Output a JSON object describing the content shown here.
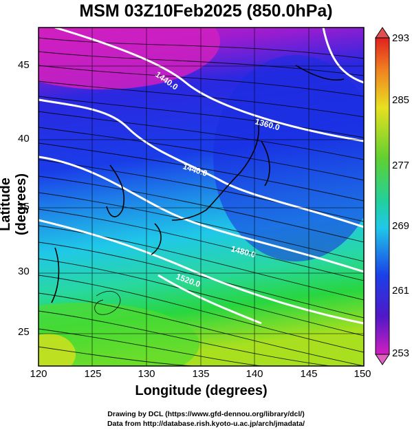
{
  "title": "MSM 03Z10Feb2025 (850.0hPa)",
  "xlabel": "Longitude (degrees)",
  "ylabel": "Latitude  (degrees)",
  "x_ticks": [
    "120",
    "125",
    "130",
    "135",
    "140",
    "145",
    "150"
  ],
  "y_ticks": [
    "25",
    "30",
    "35",
    "40",
    "45"
  ],
  "colorbar_ticks": [
    "293",
    "285",
    "277",
    "269",
    "261",
    "253"
  ],
  "contour_labels": [
    "1440.0",
    "1360.0",
    "1440.0",
    "1480.0",
    "1520.0"
  ],
  "credits": {
    "line1": "Drawing by DCL (https://www.gfd-dennou.org/library/dcl/)",
    "line2": "Data from http://database.rish.kyoto-u.ac.jp/arch/jmadata/"
  },
  "colors": {
    "magenta": "#d020c0",
    "purple": "#6a18d8",
    "blue": "#1a3ce8",
    "cyan": "#20c8e8",
    "green": "#28d640",
    "yellow_green": "#a8e020",
    "contour": "#ffffff",
    "coastline": "#000000"
  },
  "map_data": {
    "lon_range": [
      120,
      150
    ],
    "lat_range": [
      22.5,
      47.5
    ],
    "variable": "temperature",
    "colorbar_range": [
      253,
      293
    ]
  }
}
